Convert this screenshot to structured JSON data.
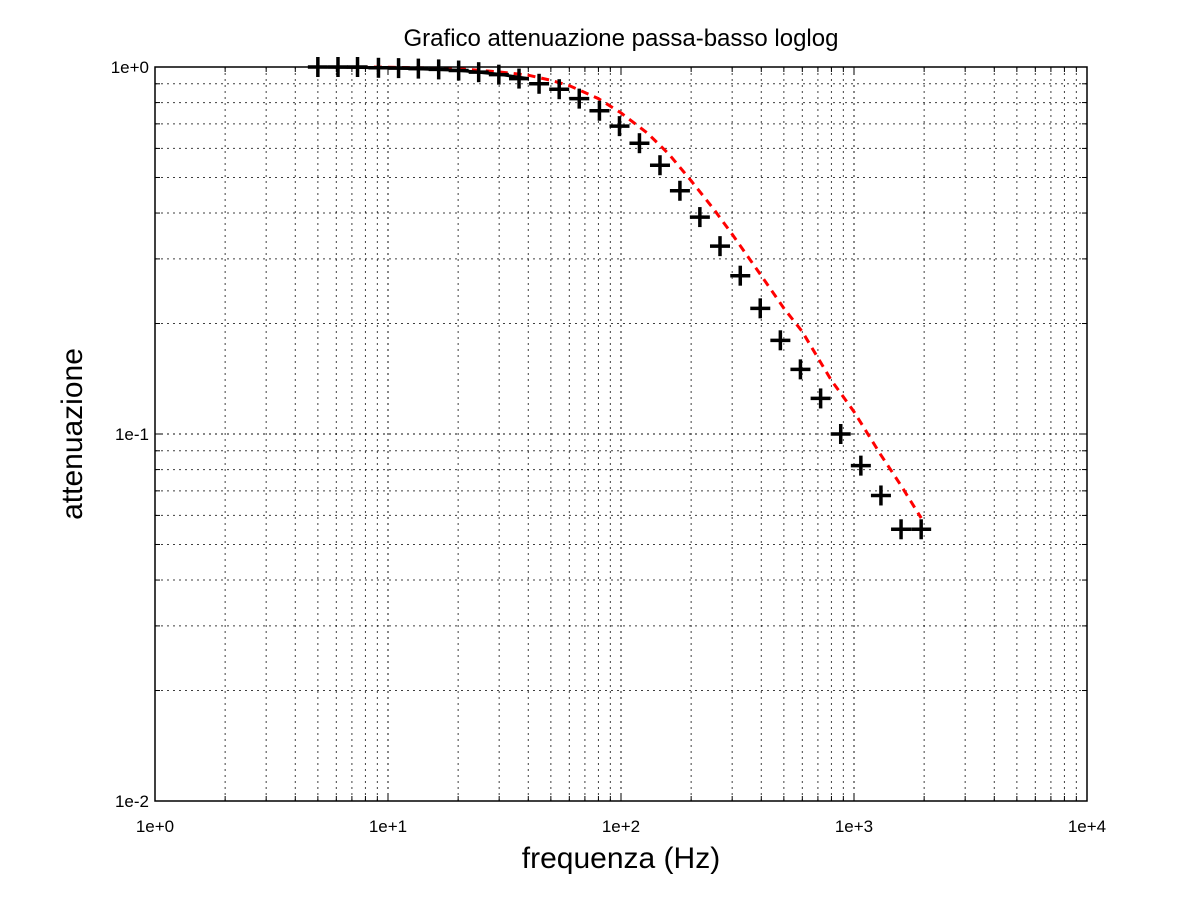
{
  "chart_data": {
    "type": "scatter",
    "title": "Grafico attenuazione passa-basso loglog",
    "xlabel": "frequenza (Hz)",
    "ylabel": "attenuazione",
    "xscale": "log",
    "yscale": "log",
    "xlim": [
      1,
      10000
    ],
    "ylim": [
      0.01,
      1
    ],
    "grid": true,
    "x_ticks": [
      "1e+0",
      "1e+1",
      "1e+2",
      "1e+3",
      "1e+4"
    ],
    "y_ticks": [
      "1e-2",
      "1e-1",
      "1e+0"
    ],
    "legend": "none",
    "series": [
      {
        "style": "markers",
        "marker": "+",
        "color": "#000000",
        "x": [
          5,
          6.1,
          7.4,
          9.1,
          11.1,
          13.5,
          16.5,
          20.1,
          24.5,
          29.9,
          36.5,
          44.5,
          54.3,
          66.2,
          80.8,
          98.5,
          120,
          147,
          179,
          218,
          266,
          325,
          396,
          483,
          589,
          719,
          877,
          1070,
          1305,
          1592,
          1942
        ],
        "y": [
          1.0,
          1.0,
          1.0,
          0.995,
          0.993,
          0.99,
          0.985,
          0.978,
          0.968,
          0.953,
          0.93,
          0.9,
          0.87,
          0.82,
          0.76,
          0.69,
          0.62,
          0.54,
          0.46,
          0.39,
          0.325,
          0.27,
          0.22,
          0.18,
          0.15,
          0.125,
          0.1,
          0.082,
          0.068,
          0.055,
          0.055
        ]
      },
      {
        "style": "line",
        "line": "dashed",
        "color": "#ff0000",
        "x": [
          5,
          10,
          20,
          30,
          40,
          50,
          60,
          80,
          100,
          130,
          160,
          200,
          250,
          300,
          400,
          500,
          600,
          800,
          1000,
          1300,
          1600,
          1942
        ],
        "y": [
          1.0,
          0.999,
          0.99,
          0.97,
          0.95,
          0.92,
          0.89,
          0.82,
          0.75,
          0.66,
          0.58,
          0.49,
          0.41,
          0.35,
          0.27,
          0.22,
          0.19,
          0.14,
          0.115,
          0.088,
          0.072,
          0.059
        ]
      },
      {
        "style": "line",
        "line": "solid",
        "color": "#000000",
        "x": [
          5,
          10,
          20,
          30,
          40
        ],
        "y": [
          1.0,
          0.995,
          0.98,
          0.955,
          0.93
        ]
      }
    ]
  }
}
